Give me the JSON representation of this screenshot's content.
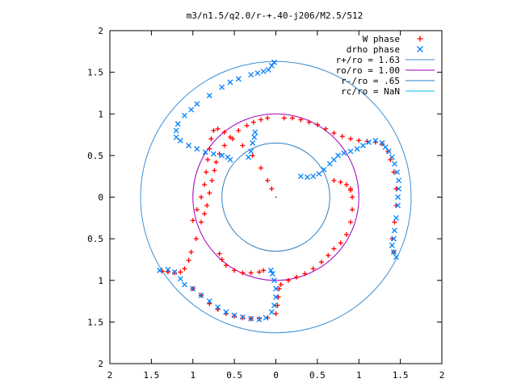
{
  "chart_data": {
    "type": "scatter",
    "title": "m3/n1.5/q2.0/r-+.40-j206/M2.5/512",
    "xlabel": "",
    "ylabel": "",
    "xlim": [
      -2,
      2
    ],
    "ylim": [
      -2,
      2
    ],
    "x_tick_values": [
      -2,
      -1.5,
      -1,
      -0.5,
      0,
      0.5,
      1,
      1.5,
      2
    ],
    "x_tick_labels": [
      "2",
      "1.5",
      "1",
      "0.5",
      "0",
      "0.5",
      "1",
      "1.5",
      "2"
    ],
    "y_tick_values": [
      -2,
      -1.5,
      -1,
      -0.5,
      0,
      0.5,
      1,
      1.5,
      2
    ],
    "y_tick_labels": [
      "2",
      "1.5",
      "1",
      "0.5",
      "0",
      "0.5",
      "1",
      "1.5",
      "2"
    ],
    "grid": false,
    "legend_position": "top-right",
    "center_marker": [
      0,
      0
    ],
    "series": [
      {
        "name": "W phase",
        "marker": "plus",
        "color": "#ff0000",
        "points": [
          [
            -0.1,
            0.95
          ],
          [
            -0.18,
            0.93
          ],
          [
            -0.27,
            0.9
          ],
          [
            -0.35,
            0.86
          ],
          [
            -0.45,
            0.8
          ],
          [
            -0.55,
            0.72
          ],
          [
            -0.62,
            0.62
          ],
          [
            -0.68,
            0.52
          ],
          [
            -0.72,
            0.42
          ],
          [
            -0.74,
            0.32
          ],
          [
            -0.77,
            0.2
          ],
          [
            -0.8,
            0.05
          ],
          [
            -0.83,
            -0.1
          ],
          [
            -0.86,
            -0.2
          ],
          [
            -0.9,
            -0.3
          ],
          [
            -0.96,
            -0.5
          ],
          [
            -1.02,
            -0.66
          ],
          [
            -1.05,
            -0.76
          ],
          [
            -1.1,
            -0.86
          ],
          [
            -1.15,
            -0.9
          ],
          [
            -1.22,
            -0.91
          ],
          [
            -1.3,
            -0.9
          ],
          [
            -1.37,
            -0.89
          ],
          [
            -1.0,
            -1.1
          ],
          [
            -0.9,
            -1.18
          ],
          [
            -0.8,
            -1.28
          ],
          [
            -0.7,
            -1.35
          ],
          [
            -0.6,
            -1.4
          ],
          [
            -0.5,
            -1.43
          ],
          [
            -0.4,
            -1.45
          ],
          [
            -0.3,
            -1.46
          ],
          [
            -0.2,
            -1.46
          ],
          [
            -0.1,
            -1.45
          ],
          [
            0.0,
            -1.4
          ],
          [
            0.02,
            -1.3
          ],
          [
            0.03,
            -1.2
          ],
          [
            0.04,
            -1.1
          ],
          [
            0.06,
            -1.05
          ],
          [
            0.15,
            -1.0
          ],
          [
            0.25,
            -0.96
          ],
          [
            0.35,
            -0.92
          ],
          [
            0.45,
            -0.86
          ],
          [
            0.55,
            -0.78
          ],
          [
            0.63,
            -0.7
          ],
          [
            0.7,
            -0.62
          ],
          [
            0.78,
            -0.55
          ],
          [
            0.85,
            -0.45
          ],
          [
            0.9,
            -0.3
          ],
          [
            0.92,
            -0.15
          ],
          [
            0.92,
            0.0
          ],
          [
            0.9,
            0.1
          ],
          [
            -0.05,
            0.1
          ],
          [
            -0.1,
            0.2
          ],
          [
            -0.18,
            0.35
          ],
          [
            -0.28,
            0.5
          ],
          [
            -0.4,
            0.62
          ],
          [
            -0.52,
            0.7
          ],
          [
            -0.62,
            0.78
          ],
          [
            -0.7,
            0.82
          ],
          [
            -0.75,
            0.8
          ],
          [
            -0.78,
            0.7
          ],
          [
            -0.8,
            0.58
          ],
          [
            -0.82,
            0.45
          ],
          [
            -0.84,
            0.3
          ],
          [
            -0.86,
            0.15
          ],
          [
            -0.9,
            0.0
          ],
          [
            -0.95,
            -0.15
          ],
          [
            -1.0,
            -0.28
          ],
          [
            -0.15,
            -0.88
          ],
          [
            -0.2,
            -0.9
          ],
          [
            -0.3,
            -0.91
          ],
          [
            -0.4,
            -0.91
          ],
          [
            -0.5,
            -0.88
          ],
          [
            -0.6,
            -0.82
          ],
          [
            -0.65,
            -0.75
          ],
          [
            -0.68,
            -0.68
          ],
          [
            0.1,
            0.95
          ],
          [
            0.2,
            0.95
          ],
          [
            0.3,
            0.93
          ],
          [
            0.4,
            0.9
          ],
          [
            0.5,
            0.87
          ],
          [
            0.6,
            0.82
          ],
          [
            0.7,
            0.77
          ],
          [
            0.8,
            0.73
          ],
          [
            0.9,
            0.7
          ],
          [
            1.0,
            0.68
          ],
          [
            1.1,
            0.67
          ],
          [
            1.2,
            0.66
          ],
          [
            1.28,
            0.64
          ],
          [
            0.7,
            0.2
          ],
          [
            0.78,
            0.18
          ],
          [
            0.85,
            0.15
          ],
          [
            0.9,
            0.08
          ],
          [
            1.35,
            0.55
          ],
          [
            1.38,
            0.45
          ],
          [
            1.42,
            0.3
          ],
          [
            1.45,
            0.1
          ],
          [
            1.45,
            -0.1
          ],
          [
            1.43,
            -0.3
          ],
          [
            1.4,
            -0.5
          ],
          [
            1.42,
            -0.66
          ]
        ]
      },
      {
        "name": "drho phase",
        "marker": "x",
        "color": "#0080ff",
        "points": [
          [
            -0.02,
            1.62
          ],
          [
            -0.05,
            1.58
          ],
          [
            -0.09,
            1.53
          ],
          [
            -0.15,
            1.51
          ],
          [
            -0.22,
            1.49
          ],
          [
            -0.3,
            1.47
          ],
          [
            -0.45,
            1.42
          ],
          [
            -0.55,
            1.38
          ],
          [
            -0.65,
            1.32
          ],
          [
            -0.8,
            1.22
          ],
          [
            -0.95,
            1.12
          ],
          [
            -1.02,
            1.05
          ],
          [
            -1.1,
            0.98
          ],
          [
            -1.18,
            0.88
          ],
          [
            -1.2,
            0.8
          ],
          [
            -1.2,
            0.72
          ],
          [
            -1.15,
            0.68
          ],
          [
            -1.05,
            0.62
          ],
          [
            -0.95,
            0.58
          ],
          [
            -0.85,
            0.54
          ],
          [
            -0.75,
            0.52
          ],
          [
            -0.65,
            0.5
          ],
          [
            -0.58,
            0.48
          ],
          [
            -0.55,
            0.45
          ],
          [
            -0.33,
            0.48
          ],
          [
            -0.3,
            0.55
          ],
          [
            -0.28,
            0.65
          ],
          [
            -0.26,
            0.72
          ],
          [
            -0.25,
            0.78
          ],
          [
            -1.4,
            -0.88
          ],
          [
            -1.3,
            -0.87
          ],
          [
            -1.22,
            -0.9
          ],
          [
            -1.15,
            -0.98
          ],
          [
            -1.1,
            -1.05
          ],
          [
            -1.0,
            -1.1
          ],
          [
            -0.9,
            -1.18
          ],
          [
            -0.8,
            -1.25
          ],
          [
            -0.7,
            -1.32
          ],
          [
            -0.6,
            -1.38
          ],
          [
            -0.5,
            -1.42
          ],
          [
            -0.4,
            -1.44
          ],
          [
            -0.3,
            -1.46
          ],
          [
            -0.2,
            -1.47
          ],
          [
            -0.12,
            -1.45
          ],
          [
            -0.05,
            -1.38
          ],
          [
            -0.02,
            -1.3
          ],
          [
            0.0,
            -1.2
          ],
          [
            0.0,
            -1.1
          ],
          [
            -0.02,
            -1.0
          ],
          [
            -0.04,
            -0.92
          ],
          [
            -0.06,
            -0.88
          ],
          [
            0.3,
            0.25
          ],
          [
            0.38,
            0.24
          ],
          [
            0.45,
            0.25
          ],
          [
            0.52,
            0.28
          ],
          [
            0.58,
            0.33
          ],
          [
            0.65,
            0.4
          ],
          [
            0.7,
            0.45
          ],
          [
            0.75,
            0.5
          ],
          [
            0.82,
            0.53
          ],
          [
            0.9,
            0.55
          ],
          [
            0.98,
            0.58
          ],
          [
            1.05,
            0.62
          ],
          [
            1.12,
            0.66
          ],
          [
            1.2,
            0.68
          ],
          [
            1.28,
            0.65
          ],
          [
            1.32,
            0.6
          ],
          [
            1.36,
            0.55
          ],
          [
            1.4,
            0.48
          ],
          [
            1.43,
            0.4
          ],
          [
            1.46,
            0.3
          ],
          [
            1.48,
            0.2
          ],
          [
            1.48,
            0.1
          ],
          [
            1.47,
            0.0
          ],
          [
            1.47,
            -0.1
          ],
          [
            1.45,
            -0.25
          ],
          [
            1.43,
            -0.4
          ],
          [
            1.42,
            -0.5
          ],
          [
            1.4,
            -0.58
          ],
          [
            1.42,
            -0.66
          ],
          [
            1.45,
            -0.72
          ]
        ]
      }
    ],
    "circles": [
      {
        "name": "r+/ro = 1.63",
        "radius": 1.63,
        "color": "#3a8fd5"
      },
      {
        "name": "ro/ro = 1.00",
        "radius": 1.0,
        "color": "#a000c0"
      },
      {
        "name": "r-/ro = .65",
        "radius": 0.65,
        "color": "#2f7fc0"
      },
      {
        "name": "rc/ro = NaN",
        "radius": null,
        "color": "#00c0e0"
      }
    ]
  }
}
